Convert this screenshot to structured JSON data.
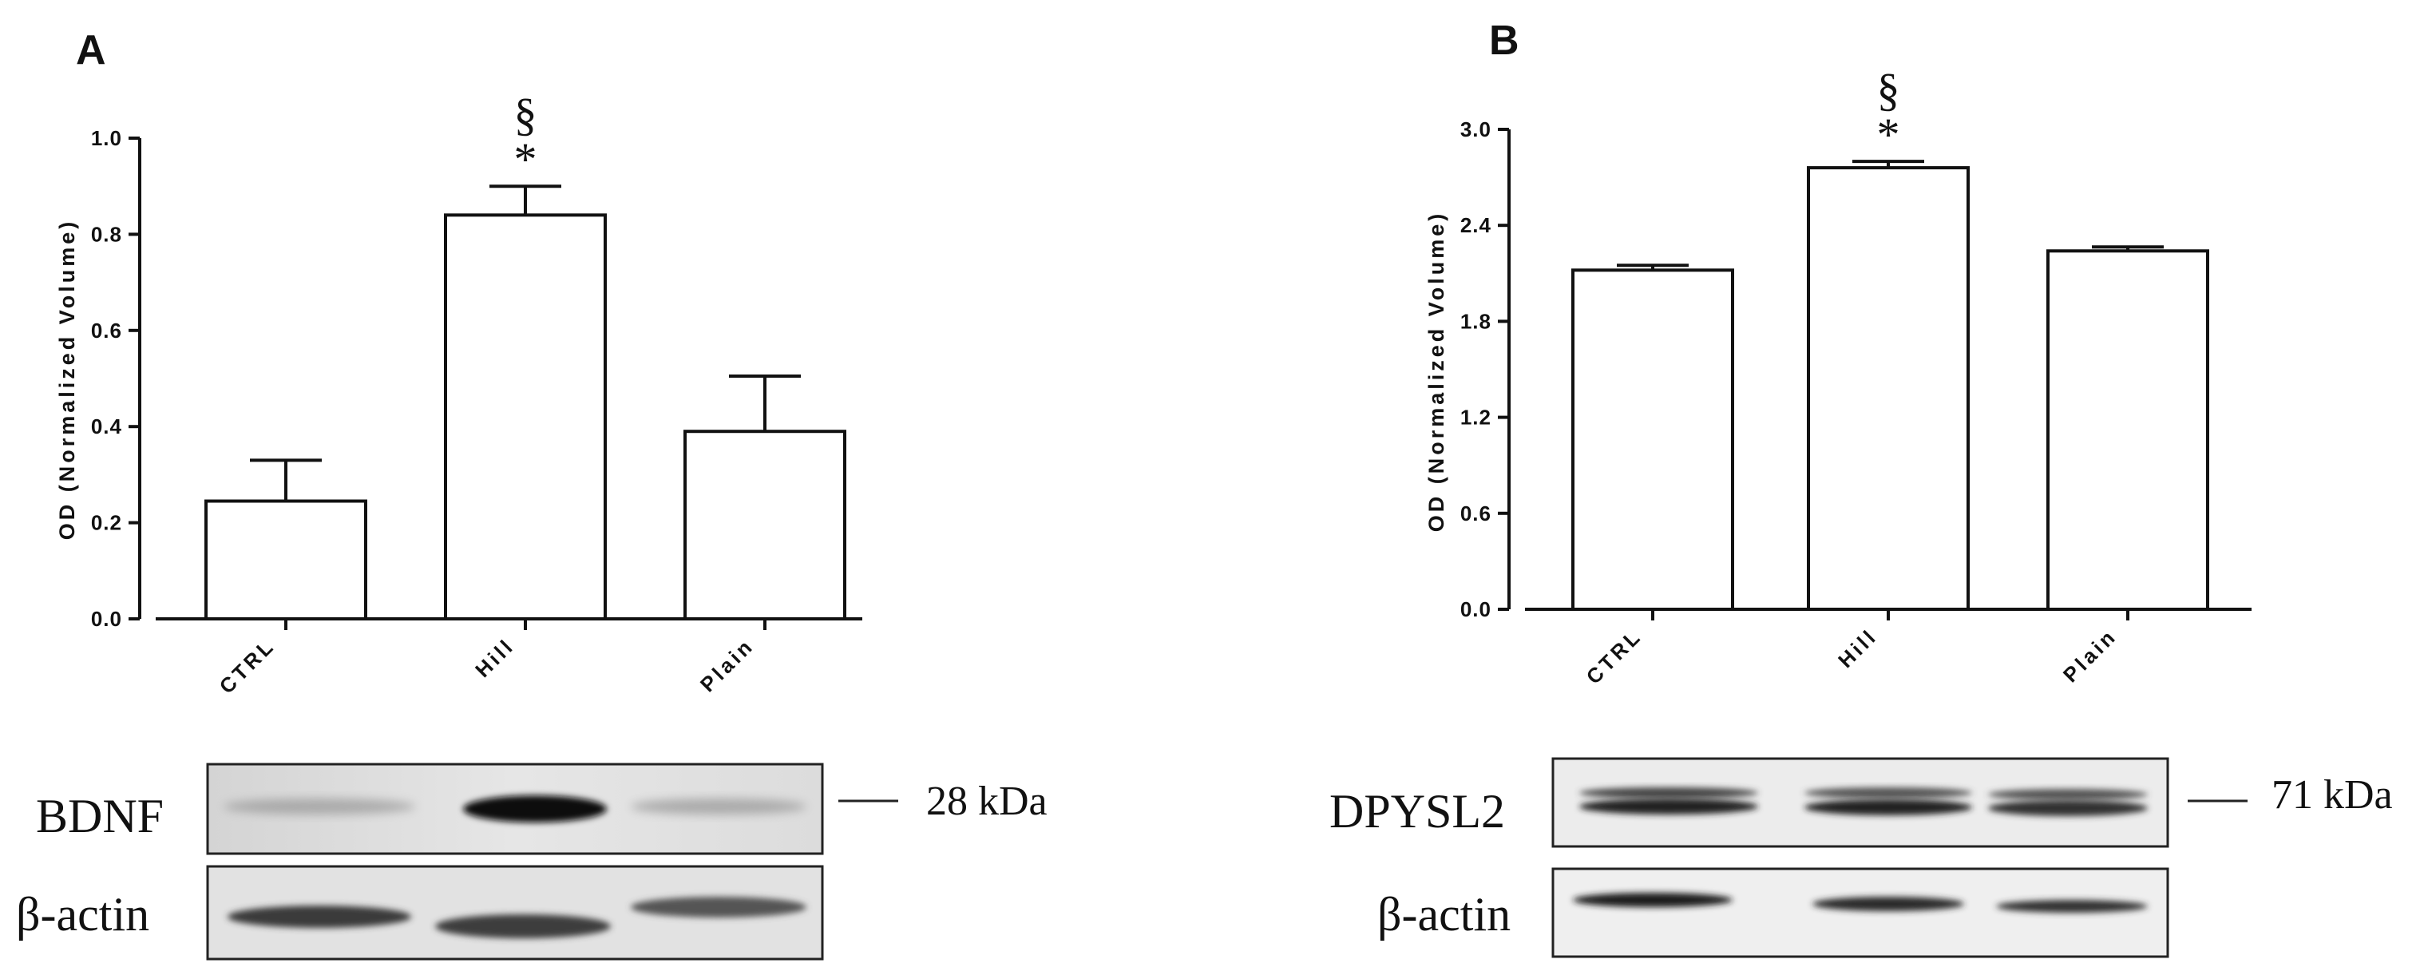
{
  "chart_data": [
    {
      "panel": "A",
      "type": "bar",
      "categories": [
        "CTRL",
        "Hill",
        "Plain"
      ],
      "values": [
        0.245,
        0.84,
        0.39
      ],
      "errors": [
        0.085,
        0.06,
        0.115
      ],
      "ylabel": "OD (Normalized Volume)",
      "ylim": [
        0,
        1.0
      ],
      "yticks": [
        "0.0",
        "0.2",
        "0.4",
        "0.6",
        "0.8",
        "1.0"
      ],
      "annotations": {
        "category": "Hill",
        "marks": [
          "§",
          "*"
        ]
      },
      "blot": {
        "protein": "BDNF",
        "size": "28 kDa",
        "loading": "β-actin"
      }
    },
    {
      "panel": "B",
      "type": "bar",
      "categories": [
        "CTRL",
        "Hill",
        "Plain"
      ],
      "values": [
        2.12,
        2.76,
        2.24
      ],
      "errors": [
        0.03,
        0.04,
        0.025
      ],
      "ylabel": "OD (Normalized Volume)",
      "ylim": [
        0,
        3.0
      ],
      "yticks": [
        "0.0",
        "0.6",
        "1.2",
        "1.8",
        "2.4",
        "3.0"
      ],
      "annotations": {
        "category": "Hill",
        "marks": [
          "§",
          "*"
        ]
      },
      "blot": {
        "protein": "DPYSL2",
        "size": "71 kDa",
        "loading": "β-actin"
      }
    }
  ]
}
